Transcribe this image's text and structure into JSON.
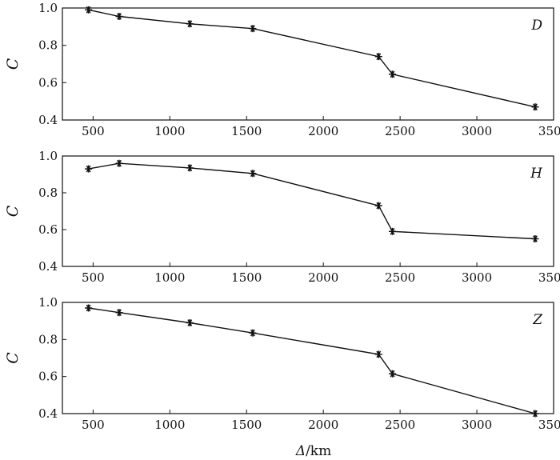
{
  "chart_data": [
    {
      "type": "line",
      "panel_label": "D",
      "ylabel": "C",
      "xlim": [
        300,
        3500
      ],
      "ylim": [
        0.4,
        1.0
      ],
      "xticks": [
        500,
        1000,
        1500,
        2000,
        2500,
        3000,
        3500
      ],
      "yticks": [
        "1.0",
        "0.8",
        "0.6",
        "0.4"
      ],
      "marker": "asterisk",
      "x": [
        470,
        670,
        1130,
        1540,
        2360,
        2450,
        3380
      ],
      "y": [
        0.99,
        0.955,
        0.915,
        0.89,
        0.74,
        0.645,
        0.47
      ]
    },
    {
      "type": "line",
      "panel_label": "H",
      "ylabel": "C",
      "xlim": [
        300,
        3500
      ],
      "ylim": [
        0.4,
        1.0
      ],
      "xticks": [
        500,
        1000,
        1500,
        2000,
        2500,
        3000,
        3500
      ],
      "yticks": [
        "1.0",
        "0.8",
        "0.6",
        "0.4"
      ],
      "marker": "asterisk",
      "x": [
        470,
        670,
        1130,
        1540,
        2360,
        2450,
        3380
      ],
      "y": [
        0.93,
        0.96,
        0.935,
        0.905,
        0.73,
        0.59,
        0.55
      ]
    },
    {
      "type": "line",
      "panel_label": "Z",
      "ylabel": "C",
      "xlabel": "Δ/km",
      "xlim": [
        300,
        3500
      ],
      "ylim": [
        0.4,
        1.0
      ],
      "xticks": [
        500,
        1000,
        1500,
        2000,
        2500,
        3000,
        3500
      ],
      "yticks": [
        "1.0",
        "0.8",
        "0.6",
        "0.4"
      ],
      "marker": "asterisk",
      "x": [
        470,
        670,
        1130,
        1540,
        2360,
        2450,
        3380
      ],
      "y": [
        0.97,
        0.945,
        0.89,
        0.835,
        0.72,
        0.615,
        0.4
      ]
    }
  ],
  "shared_xlabel": {
    "symbol": "Δ",
    "unit": "/km"
  }
}
